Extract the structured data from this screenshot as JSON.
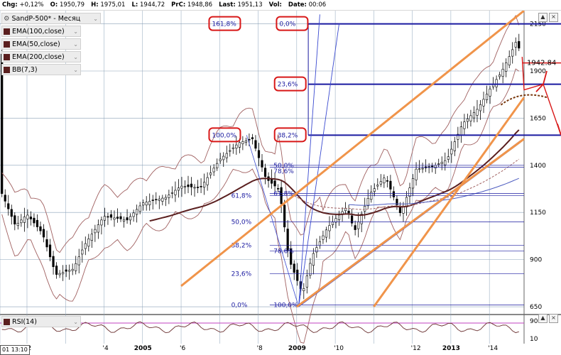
{
  "header": {
    "chg_label": "Chg:",
    "chg_value": "+0,12%",
    "open_label": "O:",
    "open_value": "1950,79",
    "high_label": "H:",
    "high_value": "1975,01",
    "low_label": "L:",
    "low_value": "1944,72",
    "prc_label": "PrC:",
    "prc_value": "1948,86",
    "last_label": "Last:",
    "last_value": "1951,13",
    "vol_label": "Vol:",
    "vol_value": "",
    "date_label": "Date:",
    "date_value": "00:06"
  },
  "legend": {
    "symbol": "SandP-500* - Месяц",
    "items": [
      "EMA(100,close)",
      "EMA(50,close)",
      "EMA(200,close)",
      "BB(7,3)"
    ]
  },
  "rsi_label": "RSI(14)",
  "clock": "01 13:10",
  "colors": {
    "ema_line": "#5a1f1f",
    "bb_line": "#a06060",
    "channel": "#f0944a",
    "fib": "#1a1aa0",
    "red_annot": "#d81818",
    "rsi_line": "#6a3030",
    "rsi_ref": "#c040c0",
    "grid": "#8aa0b8"
  },
  "chart_data": {
    "type": "candlestick",
    "y_ticks": [
      650,
      900,
      1150,
      1400,
      1650,
      1900,
      2150
    ],
    "ylim": [
      620,
      2220
    ],
    "x_ticks": [
      {
        "label": "'2",
        "x": 2002.0
      },
      {
        "label": "'4",
        "x": 2004.0
      },
      {
        "label": "2005",
        "x": 2005.0
      },
      {
        "label": "'6",
        "x": 2006.0
      },
      {
        "label": "'8",
        "x": 2008.0
      },
      {
        "label": "2009",
        "x": 2009.0
      },
      {
        "label": "'10",
        "x": 2010.0
      },
      {
        "label": "'12",
        "x": 2012.0
      },
      {
        "label": "2013",
        "x": 2013.0
      },
      {
        "label": "'14",
        "x": 2014.0
      }
    ],
    "xlim": [
      2001.3,
      2014.9
    ],
    "last_price_label": "1942.84",
    "last_price": 1942.84,
    "fib_upper": [
      {
        "label": "161,8%",
        "value": 2150
      },
      {
        "label": "0,0%",
        "value": 2150
      },
      {
        "label": "23,6%",
        "value": 1830
      },
      {
        "label": "100,0%",
        "value": 1565
      },
      {
        "label": "38,2%",
        "value": 1555
      }
    ],
    "fib_lower": [
      {
        "label": "50,0%",
        "value": 1400
      },
      {
        "label": "61,8%",
        "value": 1250
      },
      {
        "label": "78,6%",
        "value": 1370
      },
      {
        "label": "61,8%",
        "value": 1240
      },
      {
        "label": "50,0%",
        "value": 1100
      },
      {
        "label": "38,2%",
        "value": 975
      },
      {
        "label": "78,6%",
        "value": 945
      },
      {
        "label": "23,6%",
        "value": 825
      },
      {
        "label": "0,0%",
        "value": 660
      },
      {
        "label": "100,0%",
        "value": 660
      }
    ],
    "rsi_ticks": [
      90,
      10
    ]
  }
}
